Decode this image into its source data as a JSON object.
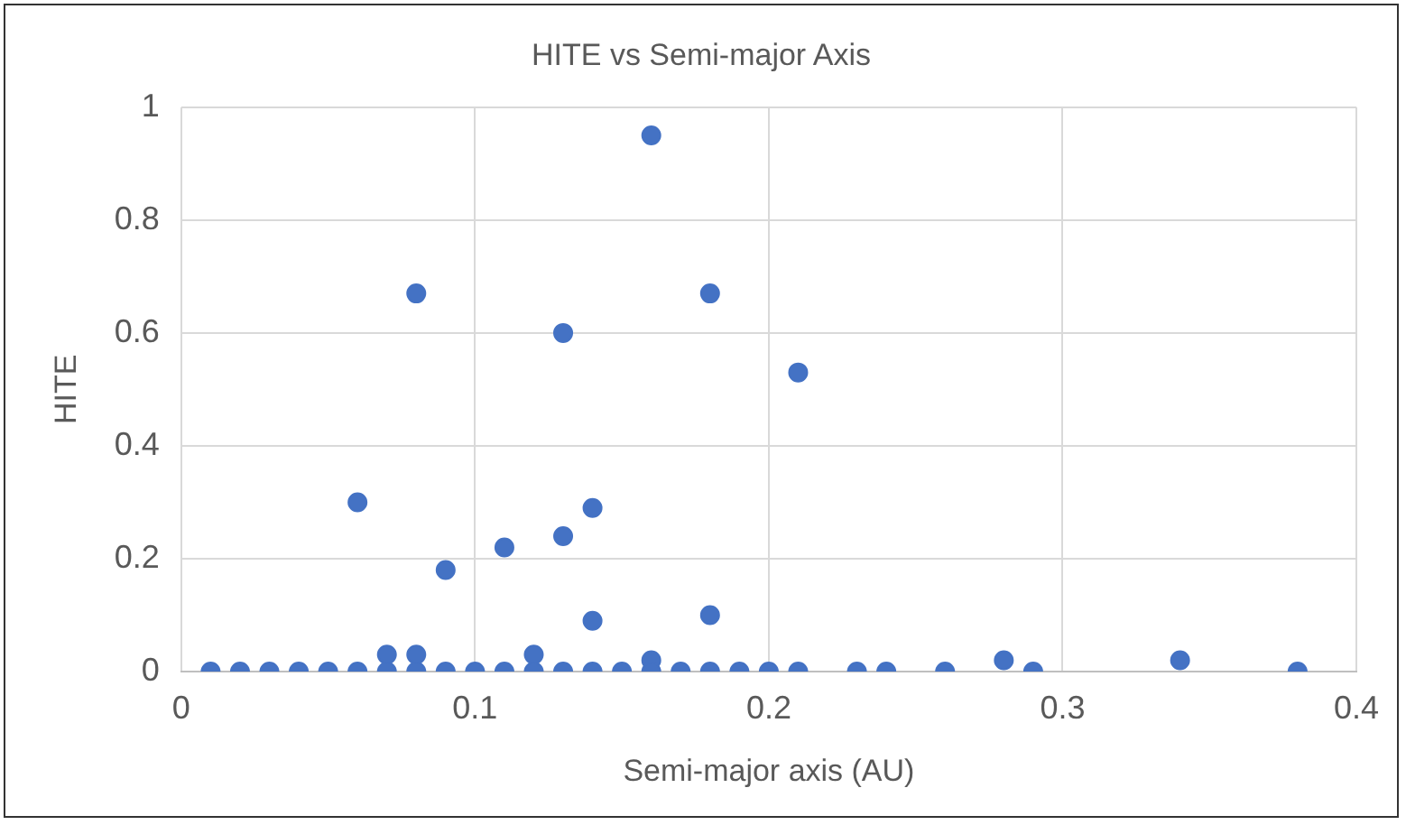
{
  "chart_data": {
    "type": "scatter",
    "title": "HITE vs Semi-major Axis",
    "xlabel": "Semi-major axis (AU)",
    "ylabel": "HITE",
    "x": [
      0.16,
      0.08,
      0.13,
      0.18,
      0.21,
      0.06,
      0.14,
      0.09,
      0.11,
      0.13,
      0.14,
      0.18,
      0.07,
      0.08,
      0.12,
      0.16,
      0.28,
      0.34,
      0.01,
      0.02,
      0.03,
      0.04,
      0.05,
      0.06,
      0.07,
      0.08,
      0.09,
      0.1,
      0.11,
      0.12,
      0.13,
      0.14,
      0.15,
      0.16,
      0.17,
      0.18,
      0.19,
      0.2,
      0.21,
      0.23,
      0.24,
      0.26,
      0.29,
      0.38
    ],
    "values": [
      0.95,
      0.67,
      0.6,
      0.67,
      0.53,
      0.3,
      0.29,
      0.18,
      0.22,
      0.24,
      0.09,
      0.1,
      0.03,
      0.03,
      0.03,
      0.02,
      0.02,
      0.02,
      0,
      0,
      0,
      0,
      0,
      0,
      0,
      0,
      0,
      0,
      0,
      0,
      0,
      0,
      0,
      0,
      0,
      0,
      0,
      0,
      0,
      0,
      0,
      0,
      0,
      0
    ],
    "color": "#4472c4",
    "marker": "circle",
    "xlim": [
      0,
      0.4
    ],
    "ylim": [
      0,
      1
    ],
    "xticks": [
      0,
      0.1,
      0.2,
      0.3,
      0.4
    ],
    "yticks": [
      0,
      0.2,
      0.4,
      0.6,
      0.8,
      1
    ],
    "grid": true,
    "legend": false
  }
}
